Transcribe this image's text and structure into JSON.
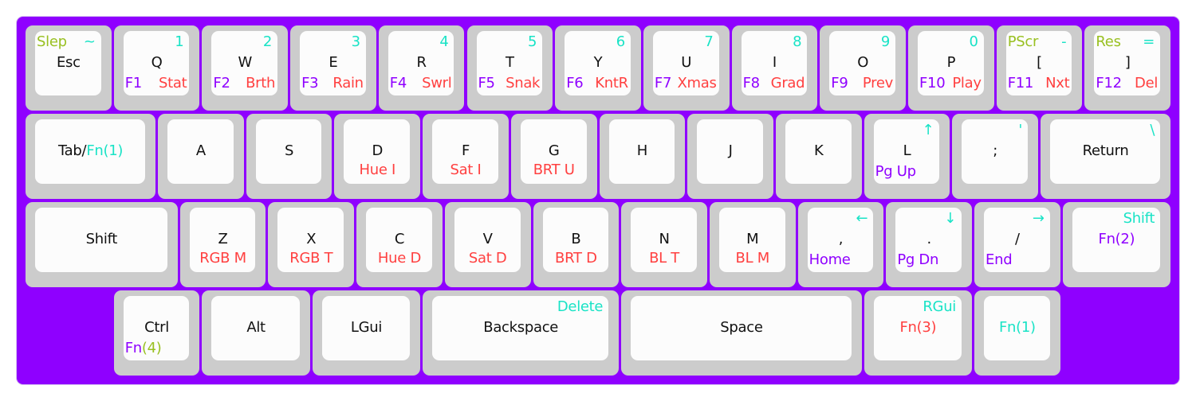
{
  "colors": {
    "board": "#8f00ff",
    "black": "#111111",
    "cyan": "#19e3c6",
    "purple": "#8f00ff",
    "red": "#ff4040",
    "green": "#99c021"
  },
  "rows": [
    [
      {
        "tl": [
          "Slep",
          "green"
        ],
        "tr": [
          "~",
          "cyan"
        ],
        "c": [
          "Esc",
          "black"
        ]
      },
      {
        "tr": [
          "1",
          "cyan"
        ],
        "c": [
          "Q",
          "black"
        ],
        "bl": [
          "F1",
          "purple"
        ],
        "br": [
          "Stat",
          "red"
        ]
      },
      {
        "tr": [
          "2",
          "cyan"
        ],
        "c": [
          "W",
          "black"
        ],
        "bl": [
          "F2",
          "purple"
        ],
        "br": [
          "Brth",
          "red"
        ]
      },
      {
        "tr": [
          "3",
          "cyan"
        ],
        "c": [
          "E",
          "black"
        ],
        "bl": [
          "F3",
          "purple"
        ],
        "br": [
          "Rain",
          "red"
        ]
      },
      {
        "tr": [
          "4",
          "cyan"
        ],
        "c": [
          "R",
          "black"
        ],
        "bl": [
          "F4",
          "purple"
        ],
        "br": [
          "Swrl",
          "red"
        ]
      },
      {
        "tr": [
          "5",
          "cyan"
        ],
        "c": [
          "T",
          "black"
        ],
        "bl": [
          "F5",
          "purple"
        ],
        "br": [
          "Snak",
          "red"
        ]
      },
      {
        "tr": [
          "6",
          "cyan"
        ],
        "c": [
          "Y",
          "black"
        ],
        "bl": [
          "F6",
          "purple"
        ],
        "br": [
          "KntR",
          "red"
        ]
      },
      {
        "tr": [
          "7",
          "cyan"
        ],
        "c": [
          "U",
          "black"
        ],
        "bl": [
          "F7",
          "purple"
        ],
        "br": [
          "Xmas",
          "red"
        ]
      },
      {
        "tr": [
          "8",
          "cyan"
        ],
        "c": [
          "I",
          "black"
        ],
        "bl": [
          "F8",
          "purple"
        ],
        "br": [
          "Grad",
          "red"
        ]
      },
      {
        "tr": [
          "9",
          "cyan"
        ],
        "c": [
          "O",
          "black"
        ],
        "bl": [
          "F9",
          "purple"
        ],
        "br": [
          "Prev",
          "red"
        ]
      },
      {
        "tr": [
          "0",
          "cyan"
        ],
        "c": [
          "P",
          "black"
        ],
        "bl": [
          "F10",
          "purple"
        ],
        "br": [
          "Play",
          "red"
        ]
      },
      {
        "tl": [
          "PScr",
          "green"
        ],
        "tr": [
          "-",
          "cyan"
        ],
        "c": [
          "[",
          "black"
        ],
        "bl": [
          "F11",
          "purple"
        ],
        "br": [
          "Nxt",
          "red"
        ]
      },
      {
        "tl": [
          "Res",
          "green"
        ],
        "tr": [
          "=",
          "cyan"
        ],
        "c": [
          "]",
          "black"
        ],
        "bl": [
          "F12",
          "purple"
        ],
        "br": [
          "Del",
          "red"
        ]
      }
    ],
    [
      {
        "c": [
          "Tab/",
          "black",
          "Fn(1)",
          "cyan"
        ]
      },
      {
        "c": [
          "A",
          "black"
        ]
      },
      {
        "c": [
          "S",
          "black"
        ]
      },
      {
        "c": [
          "D",
          "black"
        ],
        "b": [
          "Hue I",
          "red"
        ]
      },
      {
        "c": [
          "F",
          "black"
        ],
        "b": [
          "Sat I",
          "red"
        ]
      },
      {
        "c": [
          "G",
          "black"
        ],
        "b": [
          "BRT U",
          "red"
        ]
      },
      {
        "c": [
          "H",
          "black"
        ]
      },
      {
        "c": [
          "J",
          "black"
        ]
      },
      {
        "c": [
          "K",
          "black"
        ]
      },
      {
        "tr": [
          "↑",
          "cyan"
        ],
        "c": [
          "L",
          "black"
        ],
        "bl": [
          "Pg Up",
          "purple"
        ]
      },
      {
        "tr": [
          "'",
          "cyan"
        ],
        "c": [
          ";",
          "black"
        ]
      },
      {
        "tr": [
          "\\",
          "cyan"
        ],
        "c": [
          "Return",
          "black"
        ]
      }
    ],
    [
      {
        "c": [
          "Shift",
          "black"
        ]
      },
      {
        "c": [
          "Z",
          "black"
        ],
        "b": [
          "RGB M",
          "red"
        ]
      },
      {
        "c": [
          "X",
          "black"
        ],
        "b": [
          "RGB T",
          "red"
        ]
      },
      {
        "c": [
          "C",
          "black"
        ],
        "b": [
          "Hue D",
          "red"
        ]
      },
      {
        "c": [
          "V",
          "black"
        ],
        "b": [
          "Sat D",
          "red"
        ]
      },
      {
        "c": [
          "B",
          "black"
        ],
        "b": [
          "BRT D",
          "red"
        ]
      },
      {
        "c": [
          "N",
          "black"
        ],
        "b": [
          "BL T",
          "red"
        ]
      },
      {
        "c": [
          "M",
          "black"
        ],
        "b": [
          "BL M",
          "red"
        ]
      },
      {
        "tr": [
          "←",
          "cyan"
        ],
        "c": [
          ",",
          "black"
        ],
        "bl": [
          "Home",
          "purple"
        ]
      },
      {
        "tr": [
          "↓",
          "cyan"
        ],
        "c": [
          ".",
          "black"
        ],
        "bl": [
          "Pg Dn",
          "purple"
        ]
      },
      {
        "tr": [
          "→",
          "cyan"
        ],
        "c": [
          "/",
          "black"
        ],
        "bl": [
          "End",
          "purple"
        ]
      },
      {
        "tr": [
          "Shift",
          "cyan"
        ],
        "c": [
          "Fn(2)",
          "purple"
        ]
      }
    ],
    [
      {
        "c": [
          "Ctrl",
          "black"
        ],
        "bl": [
          "Fn",
          "purple",
          "(4)",
          "green"
        ]
      },
      {
        "c": [
          "Alt",
          "black"
        ]
      },
      {
        "c": [
          "LGui",
          "black"
        ]
      },
      {
        "tr": [
          "Delete",
          "cyan"
        ],
        "c": [
          "Backspace",
          "black"
        ]
      },
      {
        "c": [
          "Space",
          "black"
        ]
      },
      {
        "tr": [
          "RGui",
          "cyan"
        ],
        "c": [
          "Fn(3)",
          "red"
        ]
      },
      {
        "c": [
          "Fn(1)",
          "cyan"
        ]
      }
    ]
  ]
}
